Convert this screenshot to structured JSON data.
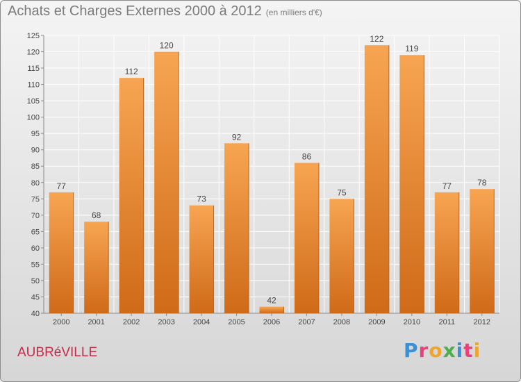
{
  "title": "Achats et Charges Externes 2000 à 2012",
  "unit_note": "(en milliers d'€)",
  "place_name": "AUBRéVILLE",
  "logo": {
    "text": "Proxiti",
    "letters": [
      {
        "ch": "P",
        "color": "#3a8fd6"
      },
      {
        "ch": "r",
        "color": "#e9407b"
      },
      {
        "ch": "o",
        "color": "#f0a429"
      },
      {
        "ch": "x",
        "color": "#4bb04b"
      },
      {
        "ch": "i",
        "color": "#3a8fd6"
      },
      {
        "ch": "t",
        "color": "#e9407b"
      },
      {
        "ch": "i",
        "color": "#f0a429"
      }
    ]
  },
  "colors": {
    "bar_light": "#f7a552",
    "bar_dark": "#cf6a18",
    "title": "#7b7b7b",
    "place": "#c52a49",
    "grid": "#ffffff",
    "text": "#444444"
  },
  "chart_data": {
    "type": "bar",
    "categories": [
      "2000",
      "2001",
      "2002",
      "2003",
      "2004",
      "2005",
      "2006",
      "2007",
      "2008",
      "2009",
      "2010",
      "2011",
      "2012"
    ],
    "values": [
      77,
      68,
      112,
      120,
      73,
      92,
      42,
      86,
      75,
      122,
      119,
      77,
      78
    ],
    "ylim": [
      40,
      125
    ],
    "yticks": [
      40,
      45,
      50,
      55,
      60,
      65,
      70,
      75,
      80,
      85,
      90,
      95,
      100,
      105,
      110,
      115,
      120,
      125
    ],
    "grid": true
  }
}
